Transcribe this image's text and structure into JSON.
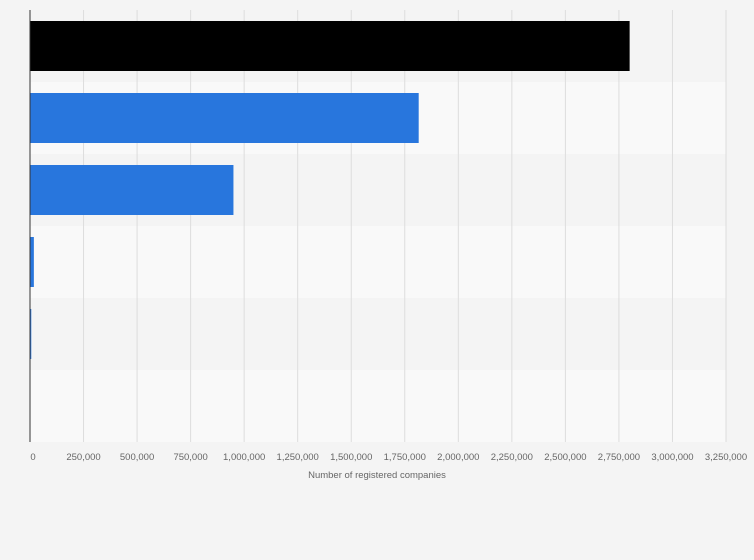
{
  "chart_data": {
    "type": "bar",
    "orientation": "horizontal",
    "xlabel": "Number of registered companies",
    "ylabel": "",
    "xlim": [
      0,
      3250000
    ],
    "xticks": [
      0,
      250000,
      500000,
      750000,
      1000000,
      1250000,
      1500000,
      1750000,
      2000000,
      2250000,
      2500000,
      2750000,
      3000000,
      3250000
    ],
    "xtick_labels": [
      "0",
      "250,000",
      "500,000",
      "750,000",
      "1,000,000",
      "1,250,000",
      "1,500,000",
      "1,750,000",
      "2,000,000",
      "2,250,000",
      "2,500,000",
      "2,750,000",
      "3,000,000",
      "3,250,000"
    ],
    "categories": [
      "",
      "",
      "",
      "",
      "",
      ""
    ],
    "values": [
      2800000,
      1815000,
      950000,
      18000,
      6000,
      0
    ],
    "bar_colors": [
      "#000000",
      "#2876dd",
      "#2876dd",
      "#2876dd",
      "#2876dd",
      "#2876dd"
    ],
    "grid": true,
    "legend": "none"
  },
  "colors": {
    "page_background": "#f4f4f4",
    "band_light": "#f9f9f9",
    "band_dark": "#f4f4f4",
    "gridline": "#dddddd",
    "axis": "#333333",
    "text": "#666666"
  }
}
